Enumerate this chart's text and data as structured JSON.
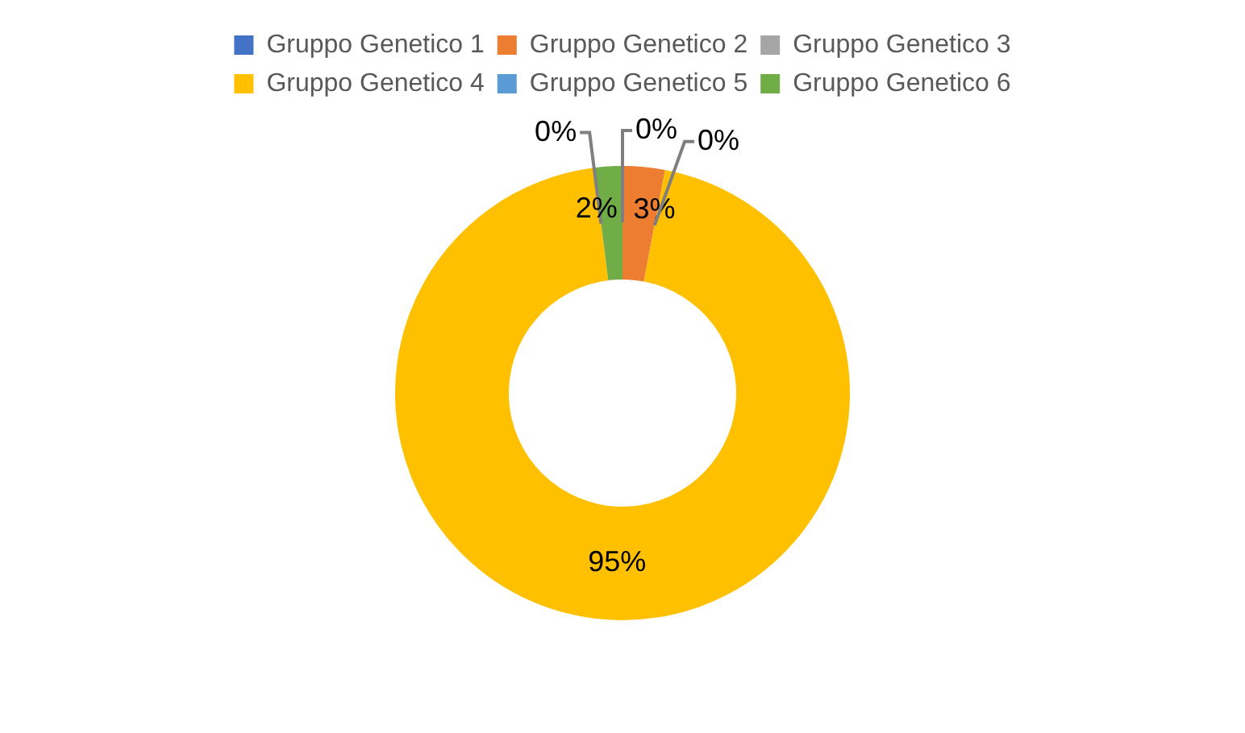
{
  "chart_data": {
    "type": "donut",
    "categories": [
      "Gruppo Genetico 1",
      "Gruppo Genetico 2",
      "Gruppo Genetico 3",
      "Gruppo Genetico 4",
      "Gruppo Genetico 5",
      "Gruppo Genetico 6"
    ],
    "values": [
      0,
      3,
      0,
      95,
      0,
      2
    ],
    "colors": [
      "#4472c4",
      "#ed7d31",
      "#a5a5a5",
      "#ffc000",
      "#5b9bd5",
      "#70ad47"
    ],
    "value_labels": [
      "0%",
      "3%",
      "0%",
      "95%",
      "0%",
      "2%"
    ],
    "legend": "top"
  }
}
